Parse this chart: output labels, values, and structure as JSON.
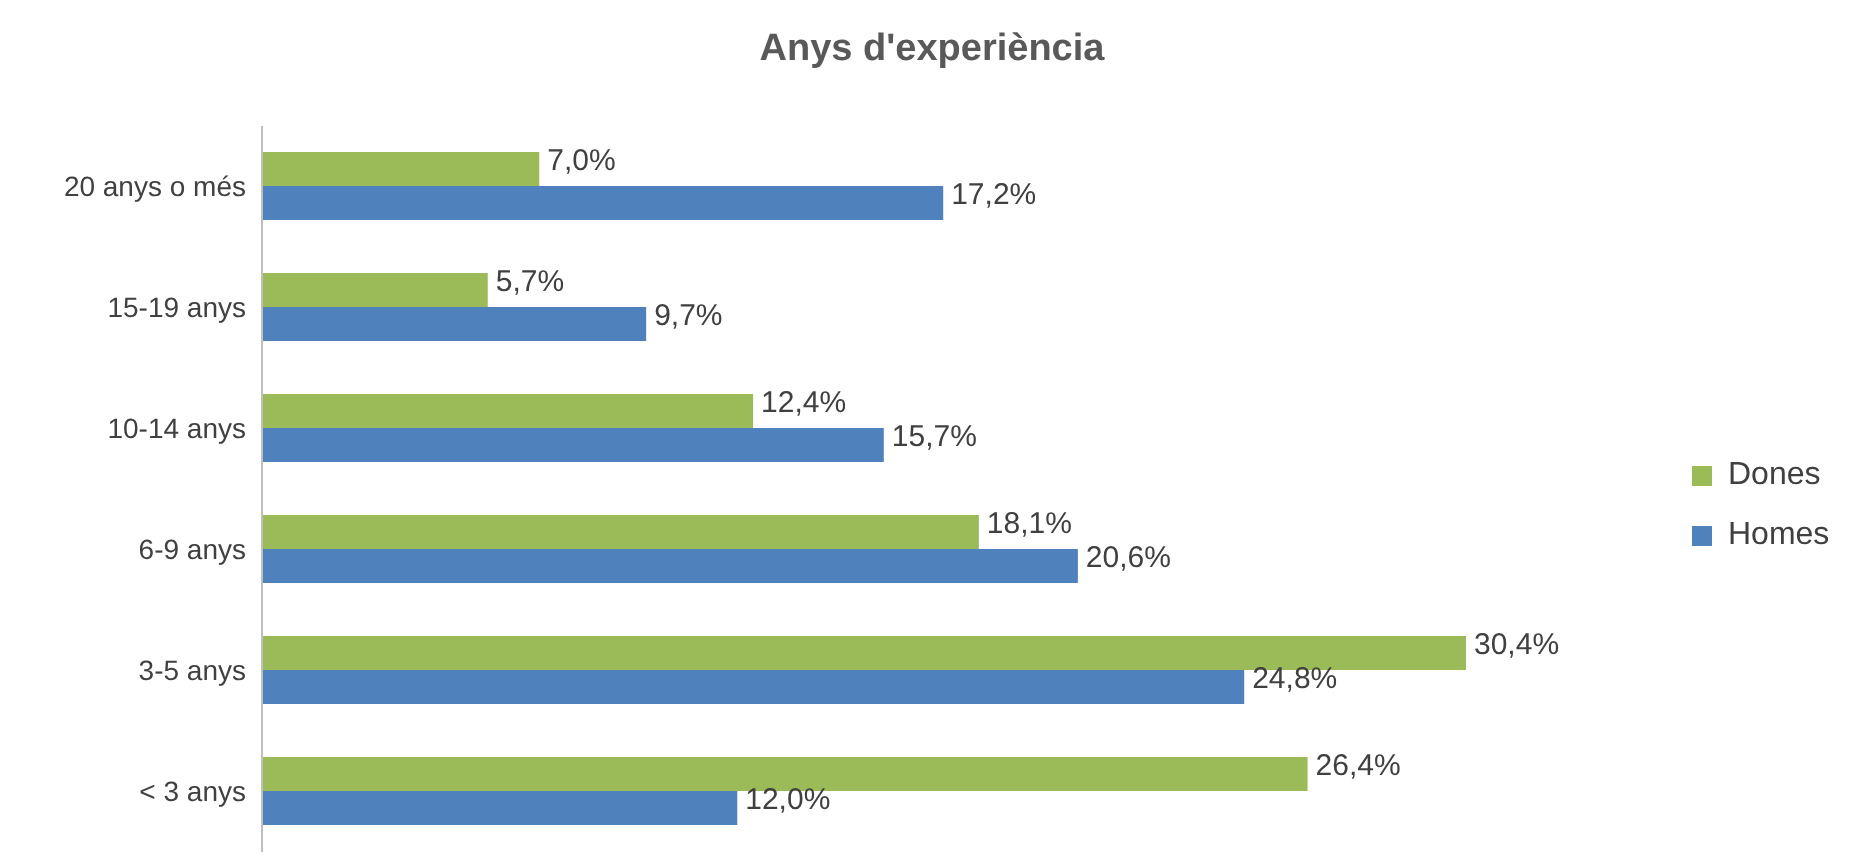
{
  "chart_data": {
    "type": "bar",
    "orientation": "horizontal",
    "title": "Anys d'experiència",
    "categories": [
      "20 anys o més",
      "15-19 anys",
      "10-14 anys",
      "6-9 anys",
      "3-5 anys",
      "< 3 anys"
    ],
    "series": [
      {
        "name": "Dones",
        "color": "#9bbb59",
        "values": [
          7.0,
          5.7,
          12.4,
          18.1,
          30.4,
          26.4
        ],
        "value_labels": [
          "7,0%",
          "5,7%",
          "12,4%",
          "18,1%",
          "30,4%",
          "26,4%"
        ]
      },
      {
        "name": "Homes",
        "color": "#4f81bd",
        "values": [
          17.2,
          9.7,
          15.7,
          20.6,
          24.8,
          12.0
        ],
        "value_labels": [
          "17,2%",
          "9,7%",
          "15,7%",
          "20,6%",
          "24,8%",
          "12,0%"
        ]
      }
    ],
    "legend": "right",
    "grid": false
  }
}
